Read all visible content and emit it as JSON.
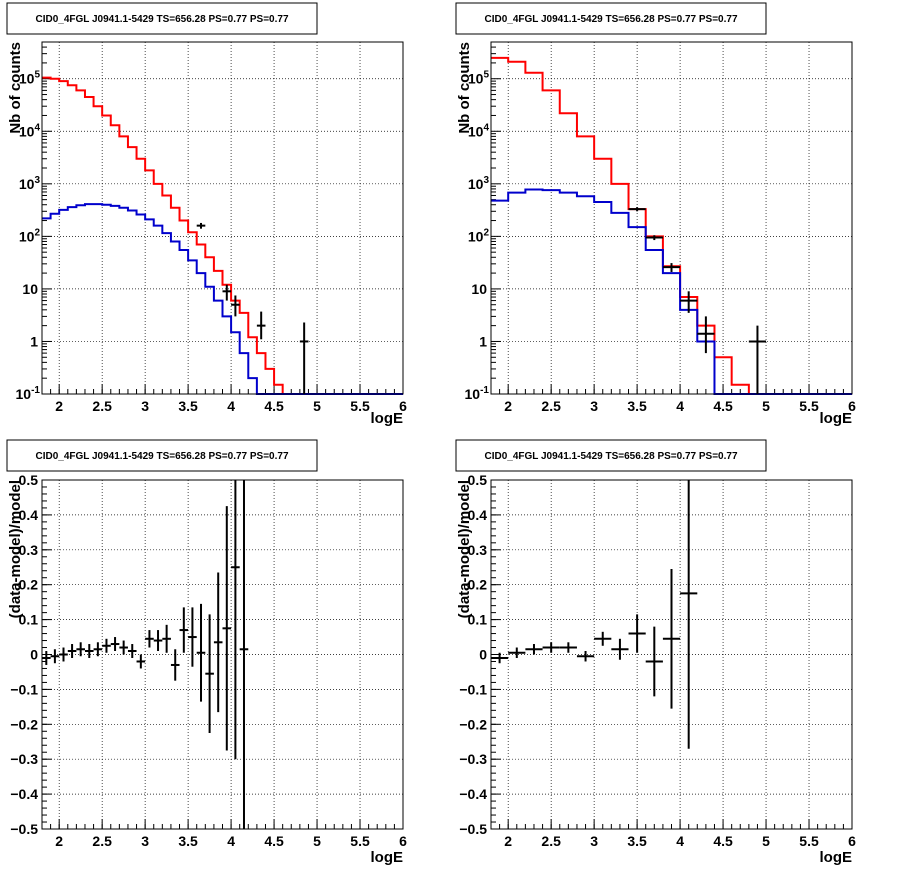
{
  "chart_data": [
    {
      "type": "line",
      "panel": "top-left",
      "title": "CID0_4FGL J0941.1-5429 TS=656.28 PS=0.77 PS=0.77",
      "xlabel": "logE",
      "ylabel": "Nb of counts",
      "xlim": [
        1.8,
        6.0
      ],
      "ylim": [
        0.1,
        500000
      ],
      "yscale": "log",
      "grid": true,
      "xticks": [
        "2",
        "2.5",
        "3",
        "3.5",
        "4",
        "4.5",
        "5",
        "5.5",
        "6"
      ],
      "yticks": [
        "10^-1",
        "1",
        "10",
        "10^2",
        "10^3",
        "10^4",
        "10^5"
      ],
      "histograms": [
        {
          "color": "#ff0000",
          "edges": [
            1.8,
            1.9,
            2.0,
            2.1,
            2.2,
            2.3,
            2.4,
            2.5,
            2.6,
            2.7,
            2.8,
            2.9,
            3.0,
            3.1,
            3.2,
            3.3,
            3.4,
            3.5,
            3.6,
            3.7,
            3.8,
            3.9,
            4.0,
            4.1,
            4.2,
            4.3,
            4.4,
            4.5,
            4.6
          ],
          "values": [
            105000,
            100000,
            90000,
            75000,
            60000,
            45000,
            30000,
            20000,
            13000,
            8000,
            5000,
            3000,
            1800,
            1000,
            600,
            350,
            200,
            120,
            70,
            40,
            22,
            12,
            6,
            3.5,
            1.2,
            0.6,
            0.3,
            0.15
          ]
        },
        {
          "color": "#0000cc",
          "edges": [
            1.8,
            1.9,
            2.0,
            2.1,
            2.2,
            2.3,
            2.4,
            2.5,
            2.6,
            2.7,
            2.8,
            2.9,
            3.0,
            3.1,
            3.2,
            3.3,
            3.4,
            3.5,
            3.6,
            3.7,
            3.8,
            3.9,
            4.0,
            4.1,
            4.2,
            4.3,
            6.0
          ],
          "values": [
            220,
            270,
            320,
            360,
            390,
            410,
            410,
            400,
            380,
            350,
            310,
            260,
            210,
            160,
            115,
            80,
            55,
            35,
            20,
            11,
            6,
            3,
            1.5,
            0.6,
            0.2,
            0.1
          ]
        }
      ],
      "data_points": [
        {
          "x": 3.65,
          "y": 160,
          "yerr": [
            140,
            180
          ],
          "xerr": 0.05
        },
        {
          "x": 3.95,
          "y": 9,
          "yerr": [
            6,
            12
          ],
          "xerr": 0.05
        },
        {
          "x": 4.05,
          "y": 5,
          "yerr": [
            3,
            7.5
          ],
          "xerr": 0.05
        },
        {
          "x": 4.35,
          "y": 2,
          "yerr": [
            1.1,
            3.7
          ],
          "xerr": 0.05
        },
        {
          "x": 4.85,
          "y": 1,
          "yerr": [
            0.1,
            2.3
          ],
          "xerr": 0.05
        }
      ]
    },
    {
      "type": "line",
      "panel": "top-right",
      "title": "CID0_4FGL J0941.1-5429 TS=656.28 PS=0.77 PS=0.77",
      "xlabel": "logE",
      "ylabel": "Nb of counts",
      "xlim": [
        1.8,
        6.0
      ],
      "ylim": [
        0.1,
        500000
      ],
      "yscale": "log",
      "grid": true,
      "xticks": [
        "2",
        "2.5",
        "3",
        "3.5",
        "4",
        "4.5",
        "5",
        "5.5",
        "6"
      ],
      "yticks": [
        "10^-1",
        "1",
        "10",
        "10^2",
        "10^3",
        "10^4",
        "10^5"
      ],
      "histograms": [
        {
          "color": "#ff0000",
          "edges": [
            1.8,
            2.0,
            2.2,
            2.4,
            2.6,
            2.8,
            3.0,
            3.2,
            3.4,
            3.6,
            3.8,
            4.0,
            4.2,
            4.4,
            4.6,
            4.8
          ],
          "values": [
            250000,
            210000,
            130000,
            60000,
            22000,
            8000,
            3000,
            1000,
            330,
            100,
            27,
            7,
            2,
            0.5,
            0.15
          ]
        },
        {
          "color": "#0000cc",
          "edges": [
            1.8,
            2.0,
            2.2,
            2.4,
            2.6,
            2.8,
            3.0,
            3.2,
            3.4,
            3.6,
            3.8,
            4.0,
            4.2,
            4.4,
            6.0
          ],
          "values": [
            480,
            680,
            780,
            760,
            680,
            580,
            450,
            280,
            150,
            55,
            20,
            4,
            1,
            0.1
          ]
        }
      ],
      "data_points": [
        {
          "x": 3.5,
          "y": 330,
          "yerr": [
            300,
            360
          ],
          "xerr": 0.1
        },
        {
          "x": 3.7,
          "y": 95,
          "yerr": [
            85,
            105
          ],
          "xerr": 0.1
        },
        {
          "x": 3.9,
          "y": 26,
          "yerr": [
            21,
            31
          ],
          "xerr": 0.1
        },
        {
          "x": 4.1,
          "y": 6,
          "yerr": [
            3.5,
            9
          ],
          "xerr": 0.1
        },
        {
          "x": 4.3,
          "y": 1.4,
          "yerr": [
            0.6,
            3
          ],
          "xerr": 0.1
        },
        {
          "x": 4.9,
          "y": 1,
          "yerr": [
            0.1,
            2
          ],
          "xerr": 0.1
        }
      ]
    },
    {
      "type": "scatter",
      "panel": "bottom-left",
      "title": "CID0_4FGL J0941.1-5429 TS=656.28 PS=0.77 PS=0.77",
      "xlabel": "logE",
      "ylabel": "(data-model)/model",
      "xlim": [
        1.8,
        6.0
      ],
      "ylim": [
        -0.5,
        0.5
      ],
      "grid": true,
      "xticks": [
        "2",
        "2.5",
        "3",
        "3.5",
        "4",
        "4.5",
        "5",
        "5.5",
        "6"
      ],
      "yticks": [
        "−0.5",
        "−0.4",
        "−0.3",
        "−0.2",
        "−0.1",
        "0",
        "0.1",
        "0.2",
        "0.3",
        "0.4",
        "0.5"
      ],
      "points": [
        {
          "x": 1.85,
          "y": -0.01,
          "err": 0.02,
          "xerr": 0.05
        },
        {
          "x": 1.95,
          "y": -0.005,
          "err": 0.02,
          "xerr": 0.05
        },
        {
          "x": 2.05,
          "y": 0.0,
          "err": 0.02,
          "xerr": 0.05
        },
        {
          "x": 2.15,
          "y": 0.01,
          "err": 0.02,
          "xerr": 0.05
        },
        {
          "x": 2.25,
          "y": 0.015,
          "err": 0.02,
          "xerr": 0.05
        },
        {
          "x": 2.35,
          "y": 0.01,
          "err": 0.02,
          "xerr": 0.05
        },
        {
          "x": 2.45,
          "y": 0.015,
          "err": 0.02,
          "xerr": 0.05
        },
        {
          "x": 2.55,
          "y": 0.025,
          "err": 0.02,
          "xerr": 0.05
        },
        {
          "x": 2.65,
          "y": 0.03,
          "err": 0.02,
          "xerr": 0.05
        },
        {
          "x": 2.75,
          "y": 0.02,
          "err": 0.02,
          "xerr": 0.05
        },
        {
          "x": 2.85,
          "y": 0.01,
          "err": 0.02,
          "xerr": 0.05
        },
        {
          "x": 2.95,
          "y": -0.02,
          "err": 0.02,
          "xerr": 0.05
        },
        {
          "x": 3.05,
          "y": 0.045,
          "err": 0.025,
          "xerr": 0.05
        },
        {
          "x": 3.15,
          "y": 0.04,
          "err": 0.03,
          "xerr": 0.05
        },
        {
          "x": 3.25,
          "y": 0.045,
          "err": 0.04,
          "xerr": 0.05
        },
        {
          "x": 3.35,
          "y": -0.03,
          "err": 0.045,
          "xerr": 0.05
        },
        {
          "x": 3.45,
          "y": 0.07,
          "err": 0.065,
          "xerr": 0.05
        },
        {
          "x": 3.55,
          "y": 0.05,
          "err": 0.085,
          "xerr": 0.05
        },
        {
          "x": 3.65,
          "y": 0.005,
          "err": 0.14,
          "xerr": 0.05
        },
        {
          "x": 3.75,
          "y": -0.055,
          "err": 0.17,
          "xerr": 0.05
        },
        {
          "x": 3.85,
          "y": 0.035,
          "err": 0.2,
          "xerr": 0.05
        },
        {
          "x": 3.95,
          "y": 0.075,
          "err": 0.35,
          "xerr": 0.05
        },
        {
          "x": 4.05,
          "y": 0.25,
          "err": 0.55,
          "xerr": 0.05
        },
        {
          "x": 4.15,
          "y": 0.015,
          "err": 0.9,
          "xerr": 0.05
        }
      ]
    },
    {
      "type": "scatter",
      "panel": "bottom-right",
      "title": "CID0_4FGL J0941.1-5429 TS=656.28 PS=0.77 PS=0.77",
      "xlabel": "logE",
      "ylabel": "(data-model)/model",
      "xlim": [
        1.8,
        6.0
      ],
      "ylim": [
        -0.5,
        0.5
      ],
      "grid": true,
      "xticks": [
        "2",
        "2.5",
        "3",
        "3.5",
        "4",
        "4.5",
        "5",
        "5.5",
        "6"
      ],
      "yticks": [
        "−0.5",
        "−0.4",
        "−0.3",
        "−0.2",
        "−0.1",
        "0",
        "0.1",
        "0.2",
        "0.3",
        "0.4",
        "0.5"
      ],
      "points": [
        {
          "x": 1.9,
          "y": -0.01,
          "err": 0.015,
          "xerr": 0.1
        },
        {
          "x": 2.1,
          "y": 0.005,
          "err": 0.015,
          "xerr": 0.1
        },
        {
          "x": 2.3,
          "y": 0.015,
          "err": 0.015,
          "xerr": 0.1
        },
        {
          "x": 2.5,
          "y": 0.02,
          "err": 0.015,
          "xerr": 0.1
        },
        {
          "x": 2.7,
          "y": 0.02,
          "err": 0.015,
          "xerr": 0.1
        },
        {
          "x": 2.9,
          "y": -0.005,
          "err": 0.015,
          "xerr": 0.1
        },
        {
          "x": 3.1,
          "y": 0.045,
          "err": 0.02,
          "xerr": 0.1
        },
        {
          "x": 3.3,
          "y": 0.015,
          "err": 0.03,
          "xerr": 0.1
        },
        {
          "x": 3.5,
          "y": 0.06,
          "err": 0.055,
          "xerr": 0.1
        },
        {
          "x": 3.7,
          "y": -0.02,
          "err": 0.1,
          "xerr": 0.1
        },
        {
          "x": 3.9,
          "y": 0.045,
          "err": 0.2,
          "xerr": 0.1
        },
        {
          "x": 4.1,
          "y": 0.175,
          "err": 0.445,
          "xerr": 0.1
        }
      ]
    }
  ]
}
